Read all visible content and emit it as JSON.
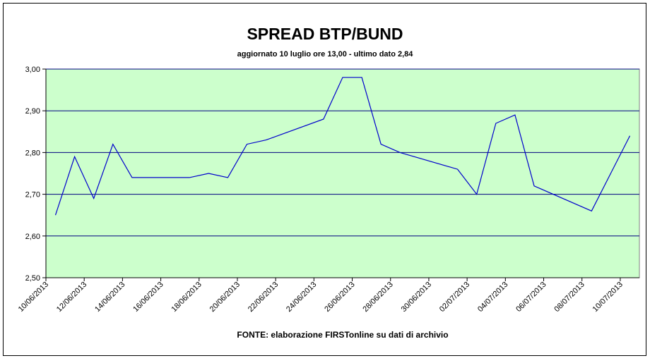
{
  "chart_data": {
    "type": "line",
    "title": "SPREAD BTP/BUND",
    "subtitle": "aggiornato 10 luglio ore 13,00 - ultimo dato 2,84",
    "source": "FONTE: elaborazione FIRSTonline su dati di archivio",
    "x": [
      "10/06/2013",
      "11/06/2013",
      "12/06/2013",
      "13/06/2013",
      "14/06/2013",
      "17/06/2013",
      "18/06/2013",
      "19/06/2013",
      "20/06/2013",
      "21/06/2013",
      "24/06/2013",
      "25/06/2013",
      "26/06/2013",
      "27/06/2013",
      "28/06/2013",
      "01/07/2013",
      "02/07/2013",
      "03/07/2013",
      "04/07/2013",
      "05/07/2013",
      "08/07/2013",
      "09/07/2013",
      "10/07/2013"
    ],
    "series": [
      {
        "name": "spread",
        "color": "#0000cc",
        "values": [
          2.65,
          2.79,
          2.69,
          2.82,
          2.74,
          2.74,
          2.75,
          2.74,
          2.82,
          2.83,
          2.88,
          2.98,
          2.98,
          2.82,
          2.8,
          2.76,
          2.7,
          2.87,
          2.89,
          2.72,
          2.66,
          2.75,
          2.84
        ]
      }
    ],
    "xlim": [
      "10/06/2013",
      "11/07/2013"
    ],
    "xticks": [
      "10/06/2013",
      "12/06/2013",
      "14/06/2013",
      "16/06/2013",
      "18/06/2013",
      "20/06/2013",
      "22/06/2013",
      "24/06/2013",
      "26/06/2013",
      "28/06/2013",
      "30/06/2013",
      "02/07/2013",
      "04/07/2013",
      "06/07/2013",
      "08/07/2013",
      "10/07/2013"
    ],
    "ylim": [
      2.5,
      3.0
    ],
    "yticks": [
      {
        "value": 2.5,
        "label": "2,50"
      },
      {
        "value": 2.6,
        "label": "2,60"
      },
      {
        "value": 2.7,
        "label": "2,70"
      },
      {
        "value": 2.8,
        "label": "2,80"
      },
      {
        "value": 2.9,
        "label": "2,90"
      },
      {
        "value": 3.0,
        "label": "3,00"
      }
    ],
    "grid": true,
    "background": "#ccffcc"
  }
}
